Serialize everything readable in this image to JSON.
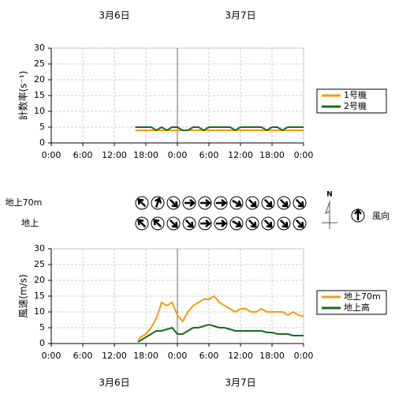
{
  "chart_data": [
    {
      "type": "line",
      "dates": [
        "3月6日",
        "3月7日"
      ],
      "ylabel": "計数率(s⁻¹)",
      "x": [
        16,
        17,
        18,
        19,
        20,
        21,
        22,
        23,
        24,
        25,
        26,
        27,
        28,
        29,
        30,
        31,
        32,
        33,
        34,
        35,
        36,
        37,
        38,
        39,
        40,
        41,
        42,
        43,
        44,
        45,
        46,
        47,
        48
      ],
      "series": [
        {
          "name": "1号機",
          "color": "#f39c12",
          "values": [
            4,
            4,
            4,
            4,
            4,
            4,
            4,
            4,
            4,
            4,
            4,
            4,
            4,
            4,
            4,
            4,
            4,
            4,
            4,
            4,
            4,
            4,
            4,
            4,
            4,
            4,
            4,
            4,
            4,
            4,
            4,
            4,
            4
          ]
        },
        {
          "name": "2号機",
          "color": "#1a6b1a",
          "values": [
            5,
            5,
            5,
            5,
            4,
            5,
            4,
            5,
            5,
            4,
            4,
            5,
            5,
            4,
            5,
            5,
            5,
            5,
            5,
            4,
            5,
            5,
            5,
            5,
            5,
            4,
            5,
            5,
            4,
            5,
            5,
            5,
            5
          ]
        }
      ],
      "divider": 24,
      "xlim": [
        0,
        48
      ],
      "ylim": [
        0,
        30
      ],
      "yticks": [
        0,
        5,
        10,
        15,
        20,
        25,
        30
      ],
      "xticks": [
        {
          "value": 0,
          "label": "0:00"
        },
        {
          "value": 6,
          "label": "6:00"
        },
        {
          "value": 12,
          "label": "12:00"
        },
        {
          "value": 18,
          "label": "18:00"
        },
        {
          "value": 24,
          "label": "0:00"
        },
        {
          "value": 30,
          "label": "6:00"
        },
        {
          "value": 36,
          "label": "12:00"
        },
        {
          "value": 42,
          "label": "18:00"
        },
        {
          "value": 48,
          "label": "0:00"
        }
      ],
      "grid": true
    },
    {
      "type": "line",
      "dates": [
        "3月6日",
        "3月7日"
      ],
      "ylabel": "風速(m/s)",
      "x": [
        16.5,
        17,
        18,
        19,
        20,
        21,
        22,
        23,
        24,
        25,
        26,
        27,
        28,
        29,
        30,
        31,
        32,
        33,
        34,
        35,
        36,
        37,
        38,
        39,
        40,
        41,
        42,
        43,
        44,
        45,
        46,
        47,
        48
      ],
      "series": [
        {
          "name": "地上70m",
          "color": "#f39c12",
          "values": [
            1,
            2,
            3,
            5,
            8,
            13,
            12,
            13,
            9,
            7,
            10,
            12,
            13,
            14,
            14,
            15,
            13,
            12,
            11,
            10,
            11,
            11,
            10,
            10,
            11,
            10,
            10,
            10,
            10,
            9,
            10,
            9,
            8.5
          ]
        },
        {
          "name": "地上高",
          "color": "#1a6b1a",
          "values": [
            0.5,
            1,
            2,
            3,
            4,
            4,
            4.5,
            5,
            3,
            3,
            4,
            5,
            5,
            5.5,
            6,
            5.5,
            5,
            5,
            4.5,
            4,
            4,
            4,
            4,
            4,
            4,
            3.5,
            3.5,
            3,
            3,
            3,
            2.5,
            2.5,
            2.5
          ]
        }
      ],
      "divider": 24,
      "xlim": [
        0,
        48
      ],
      "ylim": [
        0,
        30
      ],
      "yticks": [
        0,
        5,
        10,
        15,
        20,
        25,
        30
      ],
      "xticks": [
        {
          "value": 0,
          "label": "0:00"
        },
        {
          "value": 6,
          "label": "6:00"
        },
        {
          "value": 12,
          "label": "12:00"
        },
        {
          "value": 18,
          "label": "18:00"
        },
        {
          "value": 24,
          "label": "0:00"
        },
        {
          "value": 30,
          "label": "6:00"
        },
        {
          "value": 36,
          "label": "12:00"
        },
        {
          "value": 42,
          "label": "18:00"
        },
        {
          "value": 48,
          "label": "0:00"
        }
      ],
      "grid": true
    }
  ],
  "wind_direction": {
    "x": [
      18,
      21,
      24,
      27,
      30,
      33,
      36,
      39,
      42,
      45,
      48
    ],
    "xlim": [
      0,
      48
    ],
    "rows": [
      {
        "name": "地上70m",
        "directions": [
          315,
          20,
          135,
          90,
          90,
          90,
          120,
          135,
          135,
          135,
          135
        ]
      },
      {
        "name": "地上",
        "directions": [
          315,
          315,
          135,
          135,
          90,
          90,
          120,
          135,
          135,
          135,
          135
        ]
      }
    ],
    "compass": "N",
    "legend": "風向"
  }
}
